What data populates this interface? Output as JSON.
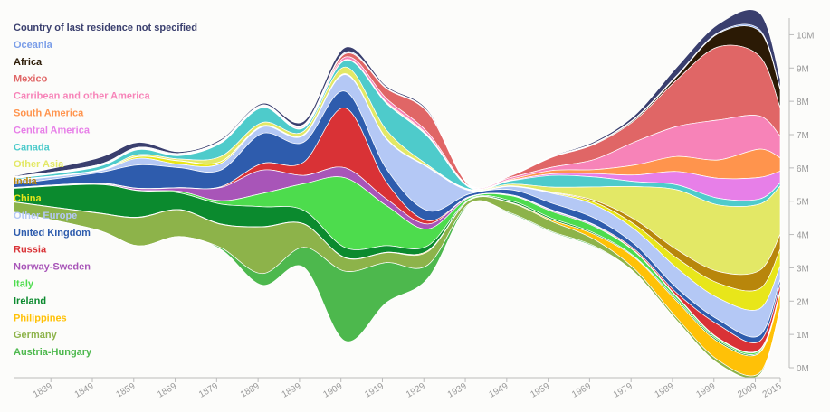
{
  "chart_data": {
    "type": "area",
    "subtype": "streamgraph",
    "title": "",
    "xlabel": "",
    "ylabel": "",
    "x_ticks": [
      "1839",
      "1849",
      "1859",
      "1869",
      "1879",
      "1889",
      "1899",
      "1909",
      "1919",
      "1929",
      "1939",
      "1949",
      "1959",
      "1969",
      "1979",
      "1989",
      "1999",
      "2009",
      "2015"
    ],
    "y_ticks": [
      "0M",
      "1M",
      "2M",
      "3M",
      "4M",
      "5M",
      "6M",
      "7M",
      "8M",
      "9M",
      "10M"
    ],
    "ylim": [
      0,
      10.5
    ],
    "x": [
      1830,
      1850,
      1860,
      1870,
      1880,
      1890,
      1900,
      1910,
      1920,
      1930,
      1940,
      1950,
      1960,
      1970,
      1980,
      1990,
      2000,
      2010,
      2015
    ],
    "legend_position": "left",
    "series": [
      {
        "name": "Country of last residence not specified",
        "color": "#3a3f6e",
        "values": [
          0.02,
          0.2,
          0.15,
          0.05,
          0.05,
          0.05,
          0.1,
          0.15,
          0.05,
          0.05,
          0.02,
          0.02,
          0.02,
          0.05,
          0.1,
          0.25,
          0.25,
          0.5,
          0.3
        ]
      },
      {
        "name": "Oceania",
        "color": "#7b9ee8",
        "values": [
          0.01,
          0.01,
          0.02,
          0.02,
          0.02,
          0.02,
          0.02,
          0.03,
          0.02,
          0.01,
          0.01,
          0.01,
          0.01,
          0.02,
          0.02,
          0.03,
          0.03,
          0.05,
          0.02
        ]
      },
      {
        "name": "Africa",
        "color": "#2b1a05",
        "values": [
          0.01,
          0.01,
          0.01,
          0.01,
          0.01,
          0.01,
          0.01,
          0.01,
          0.01,
          0.01,
          0.01,
          0.01,
          0.01,
          0.02,
          0.04,
          0.1,
          0.4,
          0.75,
          0.55
        ]
      },
      {
        "name": "Mexico",
        "color": "#e06666",
        "values": [
          0.01,
          0.01,
          0.01,
          0.01,
          0.01,
          0.01,
          0.02,
          0.1,
          0.3,
          0.6,
          0.02,
          0.05,
          0.3,
          0.45,
          0.65,
          1.4,
          2.2,
          1.8,
          0.85
        ]
      },
      {
        "name": "Carribean and other America",
        "color": "#f783b8",
        "values": [
          0.01,
          0.01,
          0.01,
          0.01,
          0.01,
          0.02,
          0.03,
          0.08,
          0.1,
          0.08,
          0.02,
          0.05,
          0.1,
          0.3,
          0.7,
          0.9,
          1.2,
          1.0,
          0.65
        ]
      },
      {
        "name": "South America",
        "color": "#ff944d",
        "values": [
          0.01,
          0.01,
          0.01,
          0.01,
          0.01,
          0.01,
          0.01,
          0.01,
          0.03,
          0.03,
          0.01,
          0.03,
          0.1,
          0.12,
          0.3,
          0.45,
          0.55,
          0.85,
          0.4
        ]
      },
      {
        "name": "Central America",
        "color": "#e77fe8",
        "values": [
          0.01,
          0.01,
          0.01,
          0.01,
          0.01,
          0.01,
          0.01,
          0.01,
          0.02,
          0.02,
          0.01,
          0.02,
          0.05,
          0.1,
          0.2,
          0.4,
          0.6,
          0.65,
          0.35
        ]
      },
      {
        "name": "Canada",
        "color": "#4ecbcb",
        "values": [
          0.03,
          0.1,
          0.15,
          0.1,
          0.4,
          0.45,
          0.1,
          0.2,
          0.8,
          0.85,
          0.05,
          0.1,
          0.35,
          0.3,
          0.15,
          0.15,
          0.2,
          0.15,
          0.1
        ]
      },
      {
        "name": "Other Asia",
        "color": "#e3e866",
        "values": [
          0.01,
          0.01,
          0.05,
          0.05,
          0.15,
          0.1,
          0.1,
          0.2,
          0.25,
          0.05,
          0.02,
          0.05,
          0.15,
          0.4,
          1.0,
          1.8,
          2.0,
          2.0,
          1.45
        ]
      },
      {
        "name": "India",
        "color": "#b8860b",
        "values": [
          0.01,
          0.01,
          0.01,
          0.01,
          0.01,
          0.01,
          0.01,
          0.01,
          0.01,
          0.01,
          0.01,
          0.01,
          0.02,
          0.05,
          0.15,
          0.25,
          0.35,
          0.55,
          0.45
        ]
      },
      {
        "name": "China",
        "color": "#e8e61a",
        "values": [
          0.01,
          0.01,
          0.05,
          0.1,
          0.05,
          0.02,
          0.02,
          0.02,
          0.01,
          0.01,
          0.01,
          0.01,
          0.02,
          0.08,
          0.15,
          0.3,
          0.45,
          0.6,
          0.5
        ]
      },
      {
        "name": "Other Europe",
        "color": "#b4c8f5",
        "values": [
          0.1,
          0.05,
          0.2,
          0.1,
          0.2,
          0.2,
          0.2,
          0.5,
          0.9,
          1.3,
          0.1,
          0.1,
          0.3,
          0.4,
          0.45,
          0.6,
          0.65,
          0.8,
          0.4
        ]
      },
      {
        "name": "United Kingdom",
        "color": "#2e5cad",
        "values": [
          0.1,
          0.3,
          0.7,
          0.6,
          0.5,
          0.9,
          0.6,
          0.5,
          0.4,
          0.3,
          0.08,
          0.15,
          0.2,
          0.2,
          0.15,
          0.15,
          0.15,
          0.18,
          0.15
        ]
      },
      {
        "name": "Russia",
        "color": "#d93236",
        "values": [
          0.01,
          0.01,
          0.01,
          0.01,
          0.02,
          0.2,
          0.4,
          1.8,
          0.5,
          0.1,
          0.01,
          0.01,
          0.02,
          0.02,
          0.05,
          0.1,
          0.4,
          0.25,
          0.2
        ]
      },
      {
        "name": "Norway-Sweden",
        "color": "#a855b8",
        "values": [
          0.01,
          0.02,
          0.05,
          0.1,
          0.4,
          0.7,
          0.25,
          0.3,
          0.2,
          0.15,
          0.02,
          0.02,
          0.03,
          0.03,
          0.02,
          0.02,
          0.02,
          0.02,
          0.02
        ]
      },
      {
        "name": "Italy",
        "color": "#4ddc4d",
        "values": [
          0.01,
          0.01,
          0.01,
          0.05,
          0.1,
          0.4,
          0.8,
          2.1,
          1.2,
          0.5,
          0.05,
          0.15,
          0.2,
          0.2,
          0.15,
          0.08,
          0.05,
          0.05,
          0.03
        ]
      },
      {
        "name": "Ireland",
        "color": "#0b8a2e",
        "values": [
          0.4,
          0.85,
          0.8,
          0.5,
          0.6,
          0.6,
          0.4,
          0.3,
          0.2,
          0.15,
          0.02,
          0.05,
          0.05,
          0.04,
          0.03,
          0.05,
          0.05,
          0.03,
          0.02
        ]
      },
      {
        "name": "Philippines",
        "color": "#ffc107",
        "values": [
          0.01,
          0.01,
          0.01,
          0.01,
          0.01,
          0.01,
          0.01,
          0.01,
          0.01,
          0.03,
          0.01,
          0.02,
          0.05,
          0.15,
          0.35,
          0.5,
          0.55,
          0.6,
          0.45
        ]
      },
      {
        "name": "Germany",
        "color": "#8db34a",
        "values": [
          0.3,
          0.5,
          0.85,
          0.8,
          0.7,
          1.4,
          0.7,
          0.4,
          0.3,
          0.4,
          0.1,
          0.3,
          0.3,
          0.2,
          0.1,
          0.08,
          0.1,
          0.06,
          0.03
        ]
      },
      {
        "name": "Austria-Hungary",
        "color": "#4db84d",
        "values": [
          0.01,
          0.01,
          0.01,
          0.01,
          0.05,
          0.35,
          0.6,
          2.1,
          1.2,
          0.4,
          0.02,
          0.03,
          0.03,
          0.03,
          0.02,
          0.02,
          0.02,
          0.02,
          0.01
        ]
      }
    ]
  }
}
